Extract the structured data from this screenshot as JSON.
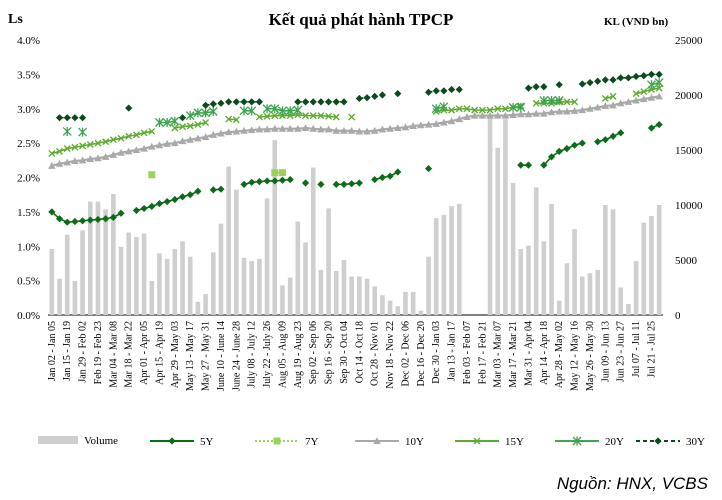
{
  "header": {
    "title": "Kết quả phát hành TPCP",
    "left_unit": "Ls",
    "right_unit": "KL (VND bn)"
  },
  "footer": {
    "source": "Nguồn: HNX, VCBS"
  },
  "chart_data": {
    "type": "bar+line",
    "title": "Kết quả phát hành TPCP",
    "ylabel": "Ls",
    "y2label": "KL (VND bn)",
    "ylim": [
      0.0,
      4.0
    ],
    "y2lim": [
      0,
      25000
    ],
    "y_ticks": [
      "0.0%",
      "0.5%",
      "1.0%",
      "1.5%",
      "2.0%",
      "2.5%",
      "3.0%",
      "3.5%",
      "4.0%"
    ],
    "y2_ticks": [
      "0",
      "5000",
      "10000",
      "15000",
      "20000",
      "25000"
    ],
    "legend_position": "bottom",
    "x_labels": [
      "Jan 02 - Jan 05",
      "Jan 15 - Jan 19",
      "Jan 29 - Feb 02",
      "Feb 19 - Feb 23",
      "Mar 04 - Mar 08",
      "Mar 18 - Mar 22",
      "Apr 01 - Apr 05",
      "Apr 15 - Apr 19",
      "Apr 29 - May 03",
      "May 13 - May 17",
      "May 27 - May 31",
      "June 10 - June 14",
      "June 24 - June 28",
      "July 08 - July 12",
      "July 22 - July 26",
      "Aug 05 - Aug 09",
      "Aug 19 - Aug 23",
      "Sep 02 - Sep 06",
      "Sep 16 - Sep 20",
      "Sep 30 - Oct 04",
      "Oct 14 - Oct 18",
      "Oct 28 - Nov 01",
      "Nov 18 - Nov 22",
      "Dec 02 - Dec 06",
      "Dec 16 - Dec 20",
      "Dec 30 - Jan 03",
      "Jan 13 - Jan 17",
      "Feb 03 - Feb 07",
      "Feb 17 - Feb 21",
      "Mar 03 - Mar 07",
      "Mar 17 - Mar 21",
      "Mar 31 - Apr 04",
      "Apr 14 - Apr 18",
      "Apr 28 - May 02",
      "May 12 - May 16",
      "May 26 - May 30",
      "Jun 09 - Jun 13",
      "Jun 23 - Jun 27",
      "Jul 07 - Jul 11",
      "Jul 21 - Jul 25"
    ],
    "n_weeks": 80,
    "series": [
      {
        "name": "Volume",
        "kind": "bar",
        "axis": "right",
        "color": "#cfcfcf",
        "values": [
          6000,
          3300,
          7300,
          3100,
          7700,
          10300,
          10300,
          9600,
          11000,
          6200,
          7500,
          7100,
          7400,
          3100,
          5600,
          5100,
          6000,
          6700,
          5300,
          1200,
          1900,
          5700,
          8300,
          13500,
          11400,
          5200,
          4900,
          5100,
          10600,
          15900,
          2700,
          3400,
          8500,
          6600,
          13400,
          4100,
          9700,
          4000,
          5000,
          3500,
          3500,
          3300,
          2600,
          1800,
          1300,
          800,
          2100,
          2100,
          400,
          5300,
          8800,
          9100,
          9900,
          10100,
          0,
          0,
          0,
          18000,
          15200,
          17800,
          12000,
          6000,
          6300,
          11600,
          6700,
          10100,
          1300,
          4700,
          7800,
          3500,
          3800,
          4100,
          10000,
          9600,
          2500,
          1000,
          4900,
          8400,
          9000,
          10000
        ]
      },
      {
        "name": "5Y",
        "kind": "line",
        "color": "#0c6b16",
        "marker": "diamond",
        "values": [
          1.5,
          1.4,
          1.35,
          1.36,
          1.37,
          1.38,
          1.39,
          1.4,
          1.42,
          1.48,
          null,
          1.52,
          1.55,
          1.58,
          1.62,
          1.65,
          1.68,
          1.72,
          1.75,
          1.8,
          null,
          1.82,
          1.83,
          null,
          null,
          1.9,
          1.93,
          1.94,
          1.95,
          1.95,
          1.96,
          1.97,
          null,
          1.92,
          null,
          1.9,
          null,
          1.9,
          1.9,
          1.91,
          1.92,
          null,
          1.97,
          2.0,
          2.02,
          2.08,
          null,
          null,
          null,
          2.13,
          null,
          null,
          null,
          null,
          null,
          null,
          null,
          null,
          null,
          null,
          null,
          2.18,
          2.18,
          null,
          2.18,
          2.3,
          2.38,
          2.42,
          2.47,
          2.5,
          null,
          2.52,
          2.55,
          2.6,
          2.65,
          null,
          null,
          null,
          2.72,
          2.77
        ]
      },
      {
        "name": "7Y",
        "kind": "line",
        "color": "#9bd35a",
        "marker": "square",
        "values": [
          null,
          null,
          null,
          null,
          null,
          null,
          null,
          null,
          null,
          null,
          null,
          null,
          null,
          2.04,
          null,
          null,
          null,
          null,
          null,
          null,
          null,
          null,
          null,
          null,
          null,
          null,
          null,
          null,
          null,
          2.07,
          2.07,
          null,
          null,
          null,
          null,
          null,
          null,
          null,
          null,
          null,
          null,
          null,
          null,
          null,
          null,
          null,
          null,
          null,
          null,
          null,
          null,
          null,
          null,
          null,
          null,
          null,
          null,
          null,
          null,
          null,
          null,
          null,
          null,
          null,
          null,
          null,
          null,
          null,
          null,
          null,
          null,
          null,
          null,
          null,
          null,
          null,
          null,
          null,
          null,
          null
        ]
      },
      {
        "name": "10Y",
        "kind": "line",
        "color": "#a9a9a9",
        "marker": "triangle",
        "values": [
          2.17,
          2.2,
          2.22,
          2.24,
          2.25,
          2.27,
          2.28,
          2.3,
          2.33,
          2.36,
          2.38,
          2.4,
          2.42,
          2.45,
          2.47,
          2.49,
          2.5,
          2.53,
          2.55,
          2.57,
          2.59,
          2.62,
          2.64,
          2.66,
          2.67,
          2.68,
          2.69,
          2.7,
          2.7,
          2.71,
          2.71,
          2.71,
          2.71,
          2.72,
          2.71,
          2.7,
          2.7,
          2.68,
          2.68,
          2.68,
          2.67,
          2.67,
          2.68,
          2.7,
          2.71,
          2.72,
          2.73,
          2.75,
          2.76,
          2.77,
          2.78,
          2.8,
          2.82,
          2.85,
          2.88,
          2.9,
          2.9,
          2.9,
          2.9,
          2.9,
          2.91,
          2.92,
          2.92,
          2.93,
          2.93,
          2.95,
          2.96,
          2.96,
          2.97,
          2.98,
          3.0,
          3.02,
          3.04,
          3.05,
          3.08,
          3.1,
          3.12,
          3.14,
          3.16,
          3.18
        ]
      },
      {
        "name": "15Y",
        "kind": "line",
        "color": "#5faa32",
        "marker": "x",
        "values": [
          2.35,
          2.38,
          2.42,
          2.44,
          2.46,
          2.48,
          2.5,
          2.52,
          2.55,
          2.57,
          2.6,
          2.62,
          2.65,
          2.67,
          null,
          null,
          2.72,
          2.74,
          2.75,
          2.77,
          2.8,
          null,
          null,
          2.85,
          2.84,
          null,
          null,
          2.88,
          2.89,
          2.9,
          2.9,
          2.9,
          2.91,
          2.9,
          2.9,
          2.9,
          2.89,
          2.88,
          null,
          2.88,
          null,
          null,
          null,
          null,
          null,
          null,
          null,
          null,
          null,
          null,
          2.96,
          2.98,
          2.98,
          3.0,
          3.0,
          2.98,
          2.98,
          2.98,
          3.0,
          3.0,
          3.02,
          3.04,
          null,
          3.08,
          3.08,
          3.08,
          3.1,
          3.1,
          3.1,
          null,
          null,
          null,
          3.15,
          3.18,
          null,
          null,
          3.22,
          3.25,
          3.28,
          3.3
        ]
      },
      {
        "name": "20Y",
        "kind": "line",
        "color": "#3fa550",
        "marker": "star",
        "values": [
          null,
          null,
          2.67,
          null,
          2.66,
          null,
          null,
          null,
          null,
          null,
          null,
          null,
          null,
          null,
          2.8,
          2.8,
          2.82,
          null,
          2.9,
          2.94,
          2.94,
          2.96,
          null,
          null,
          null,
          2.97,
          2.97,
          null,
          3.0,
          3.0,
          2.97,
          2.97,
          2.98,
          null,
          null,
          null,
          null,
          null,
          null,
          null,
          null,
          null,
          null,
          null,
          null,
          null,
          null,
          null,
          null,
          null,
          3.0,
          3.03,
          null,
          null,
          null,
          null,
          null,
          null,
          null,
          null,
          3.02,
          3.02,
          null,
          null,
          3.12,
          3.12,
          3.12,
          null,
          null,
          null,
          null,
          null,
          null,
          null,
          null,
          null,
          null,
          null,
          3.35,
          3.38
        ]
      },
      {
        "name": "30Y",
        "kind": "line",
        "color": "#0a4a1c",
        "marker": "diamond",
        "values": [
          null,
          2.87,
          2.87,
          2.87,
          2.87,
          null,
          null,
          null,
          null,
          null,
          3.01,
          null,
          null,
          null,
          null,
          null,
          null,
          2.87,
          null,
          null,
          3.05,
          3.07,
          3.08,
          3.1,
          3.1,
          3.1,
          3.1,
          3.1,
          null,
          null,
          null,
          null,
          3.1,
          3.1,
          3.1,
          3.1,
          3.1,
          3.1,
          3.1,
          null,
          3.15,
          3.16,
          3.18,
          3.2,
          null,
          3.22,
          null,
          null,
          null,
          3.24,
          3.26,
          3.26,
          3.28,
          3.28,
          null,
          null,
          null,
          null,
          null,
          null,
          null,
          null,
          3.3,
          3.32,
          3.32,
          null,
          3.35,
          null,
          null,
          3.36,
          3.38,
          3.4,
          3.42,
          3.42,
          3.45,
          3.45,
          3.47,
          3.48,
          3.5,
          3.5
        ]
      }
    ]
  }
}
